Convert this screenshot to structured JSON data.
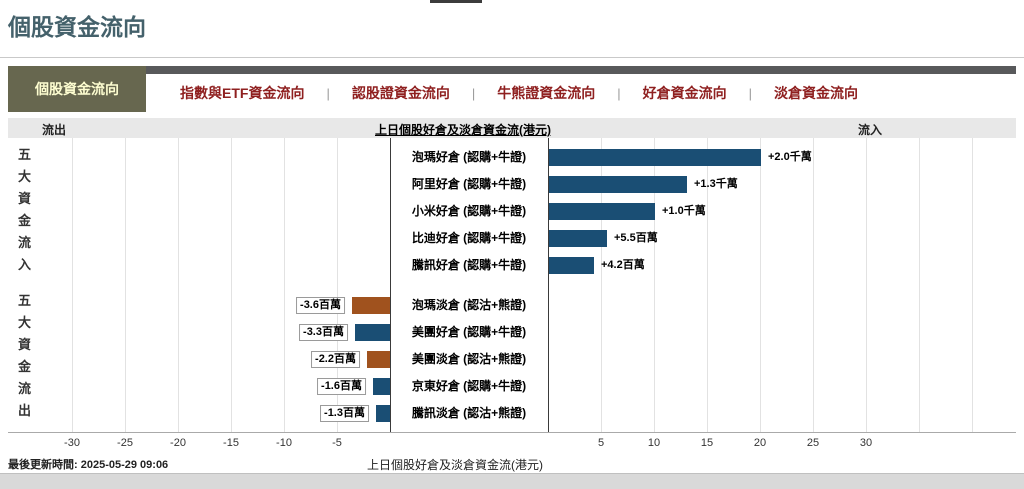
{
  "header": {
    "page_title": "個股資金流向"
  },
  "tabs": {
    "separator": "|",
    "items": [
      {
        "label": "個股資金流向",
        "active": true
      },
      {
        "label": "指數與ETF資金流向",
        "active": false
      },
      {
        "label": "認股證資金流向",
        "active": false
      },
      {
        "label": "牛熊證資金流向",
        "active": false
      },
      {
        "label": "好倉資金流向",
        "active": false
      },
      {
        "label": "淡倉資金流向",
        "active": false
      }
    ]
  },
  "chart_header": {
    "outflow_label": "流出",
    "title": "上日個股好倉及淡倉資金流(港元)",
    "inflow_label": "流入"
  },
  "chart_data": {
    "type": "bar",
    "orientation": "horizontal",
    "title": "上日個股好倉及淡倉資金流(港元)",
    "xlabel": "上日個股好倉及淡倉資金流(港元)",
    "unit_note": "values in millions HKD (百萬港元)",
    "xlim": [
      -36,
      44
    ],
    "x_tick_values": [
      -30,
      -25,
      -20,
      -15,
      -10,
      -5,
      5,
      10,
      15,
      20,
      25,
      30
    ],
    "extra_gridlines": [
      35,
      40
    ],
    "grid": true,
    "group_labels": {
      "top": "五大資金流入",
      "bottom": "五大資金流出"
    },
    "bar_colors": {
      "navy": "#1a4e74",
      "brown": "#a0521e"
    },
    "rows": [
      {
        "label": "泡瑪好倉 (認購+牛證)",
        "value": 20,
        "value_label": "+2.0千萬",
        "color": "navy",
        "group": "inflow"
      },
      {
        "label": "阿里好倉 (認購+牛證)",
        "value": 13,
        "value_label": "+1.3千萬",
        "color": "navy",
        "group": "inflow"
      },
      {
        "label": "小米好倉 (認購+牛證)",
        "value": 10,
        "value_label": "+1.0千萬",
        "color": "navy",
        "group": "inflow"
      },
      {
        "label": "比迪好倉 (認購+牛證)",
        "value": 5.5,
        "value_label": "+5.5百萬",
        "color": "navy",
        "group": "inflow"
      },
      {
        "label": "騰訊好倉 (認購+牛證)",
        "value": 4.2,
        "value_label": "+4.2百萬",
        "color": "navy",
        "group": "inflow"
      },
      {
        "label": "泡瑪淡倉 (認沽+熊證)",
        "value": -3.6,
        "value_label": "-3.6百萬",
        "color": "brown",
        "group": "outflow"
      },
      {
        "label": "美團好倉 (認購+牛證)",
        "value": -3.3,
        "value_label": "-3.3百萬",
        "color": "navy",
        "group": "outflow"
      },
      {
        "label": "美團淡倉 (認沽+熊證)",
        "value": -2.2,
        "value_label": "-2.2百萬",
        "color": "brown",
        "group": "outflow"
      },
      {
        "label": "京東好倉 (認購+牛證)",
        "value": -1.6,
        "value_label": "-1.6百萬",
        "color": "navy",
        "group": "outflow"
      },
      {
        "label": "騰訊淡倉 (認沽+熊證)",
        "value": -1.3,
        "value_label": "-1.3百萬",
        "color": "navy",
        "group": "outflow"
      }
    ]
  },
  "footer": {
    "last_update": "最後更新時間: 2025-05-29 09:06",
    "axis_title": "上日個股好倉及淡倉資金流(港元)"
  }
}
